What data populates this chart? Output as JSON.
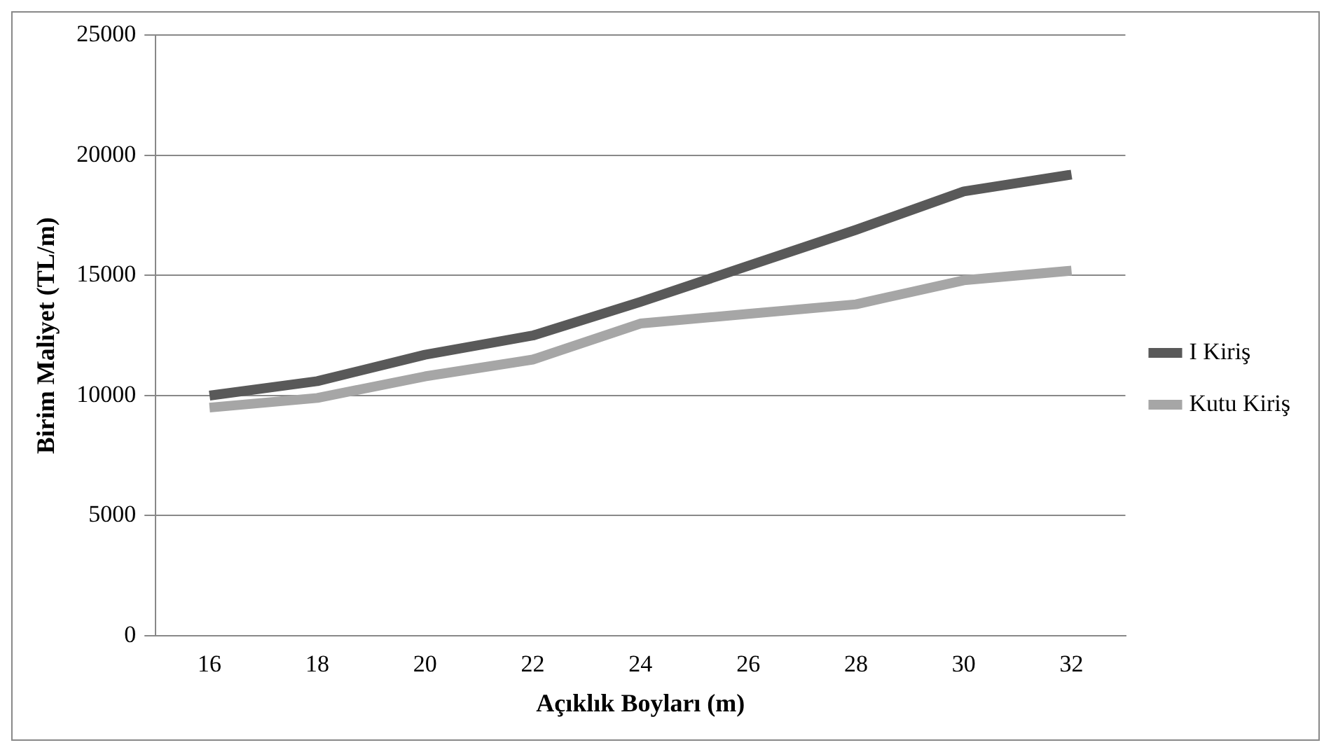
{
  "chart_data": {
    "type": "line",
    "xlabel": "Açıklık Boyları (m)",
    "ylabel": "Birim Maliyet (TL/m)",
    "categories": [
      "16",
      "18",
      "20",
      "22",
      "24",
      "26",
      "28",
      "30",
      "32"
    ],
    "series": [
      {
        "name": "I Kiriş",
        "color": "#595959",
        "values": [
          10000,
          10600,
          11700,
          12500,
          13900,
          15400,
          16900,
          18500,
          19200
        ]
      },
      {
        "name": "Kutu Kiriş",
        "color": "#a6a6a6",
        "values": [
          9500,
          9900,
          10800,
          11500,
          13000,
          13400,
          13800,
          14800,
          15200
        ]
      }
    ],
    "ylim": [
      0,
      25000
    ],
    "yticks": [
      0,
      5000,
      10000,
      15000,
      20000,
      25000
    ],
    "grid": "y",
    "legend": "right",
    "marker": "none",
    "line_style": "solid"
  }
}
